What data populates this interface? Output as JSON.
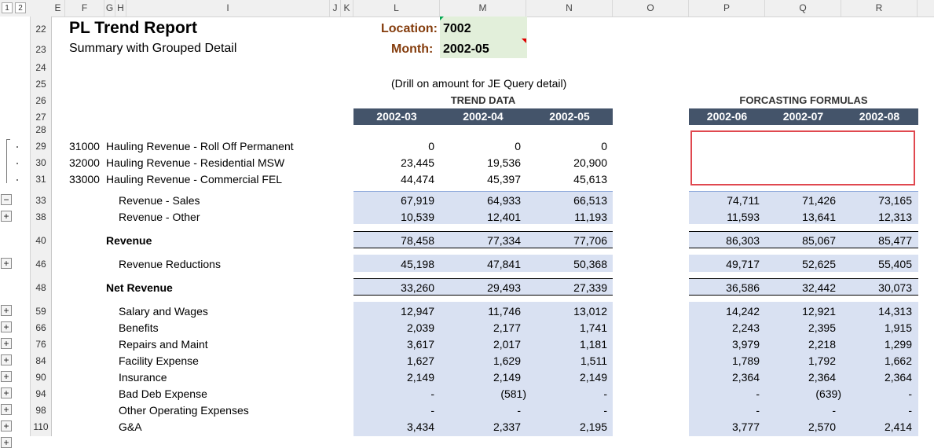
{
  "column_headers": [
    "E",
    "F",
    "G",
    "H",
    "I",
    "J",
    "K",
    "L",
    "M",
    "N",
    "O",
    "P",
    "Q",
    "R"
  ],
  "outline_levels": [
    "1",
    "2"
  ],
  "title": "PL Trend Report",
  "subtitle": "Summary with Grouped Detail",
  "location_label": "Location:",
  "location_value": "7002",
  "month_label": "Month:",
  "month_value": "2002-05",
  "drill_note": "(Drill on amount for JE Query detail)",
  "trend_title": "TREND DATA",
  "forecast_title": "FORCASTING FORMULAS",
  "trend_periods": [
    "2002-03",
    "2002-04",
    "2002-05"
  ],
  "forecast_periods": [
    "2002-06",
    "2002-07",
    "2002-08"
  ],
  "row_numbers": [
    "22",
    "23",
    "24",
    "25",
    "26",
    "27",
    "28",
    "29",
    "30",
    "31",
    "33",
    "38",
    "40",
    "46",
    "48",
    "59",
    "66",
    "76",
    "84",
    "90",
    "94",
    "98",
    "110"
  ],
  "detail_rows": [
    {
      "row": "29",
      "account": "31000",
      "desc": "Hauling Revenue - Roll Off Permanent",
      "trend": [
        "0",
        "0",
        "0"
      ]
    },
    {
      "row": "30",
      "account": "32000",
      "desc": "Hauling Revenue - Residential MSW",
      "trend": [
        "23,445",
        "19,536",
        "20,900"
      ]
    },
    {
      "row": "31",
      "account": "33000",
      "desc": "Hauling Revenue - Commercial FEL",
      "trend": [
        "44,474",
        "45,397",
        "45,613"
      ]
    }
  ],
  "summary_rows": [
    {
      "row": "33",
      "label": "Revenue - Sales",
      "bold": false,
      "trend": [
        "67,919",
        "64,933",
        "66,513"
      ],
      "forecast": [
        "74,711",
        "71,426",
        "73,165"
      ]
    },
    {
      "row": "38",
      "label": "Revenue - Other",
      "bold": false,
      "trend": [
        "10,539",
        "12,401",
        "11,193"
      ],
      "forecast": [
        "11,593",
        "13,641",
        "12,313"
      ]
    },
    {
      "row": "40",
      "label": "Revenue",
      "bold": true,
      "trend": [
        "78,458",
        "77,334",
        "77,706"
      ],
      "forecast": [
        "86,303",
        "85,067",
        "85,477"
      ]
    },
    {
      "row": "46",
      "label": "Revenue Reductions",
      "bold": false,
      "trend": [
        "45,198",
        "47,841",
        "50,368"
      ],
      "forecast": [
        "49,717",
        "52,625",
        "55,405"
      ]
    },
    {
      "row": "48",
      "label": "Net Revenue",
      "bold": true,
      "trend": [
        "33,260",
        "29,493",
        "27,339"
      ],
      "forecast": [
        "36,586",
        "32,442",
        "30,073"
      ]
    },
    {
      "row": "59",
      "label": "Salary and Wages",
      "bold": false,
      "trend": [
        "12,947",
        "11,746",
        "13,012"
      ],
      "forecast": [
        "14,242",
        "12,921",
        "14,313"
      ]
    },
    {
      "row": "66",
      "label": "Benefits",
      "bold": false,
      "trend": [
        "2,039",
        "2,177",
        "1,741"
      ],
      "forecast": [
        "2,243",
        "2,395",
        "1,915"
      ]
    },
    {
      "row": "76",
      "label": "Repairs and Maint",
      "bold": false,
      "trend": [
        "3,617",
        "2,017",
        "1,181"
      ],
      "forecast": [
        "3,979",
        "2,218",
        "1,299"
      ]
    },
    {
      "row": "84",
      "label": "Facility Expense",
      "bold": false,
      "trend": [
        "1,627",
        "1,629",
        "1,511"
      ],
      "forecast": [
        "1,789",
        "1,792",
        "1,662"
      ]
    },
    {
      "row": "90",
      "label": "Insurance",
      "bold": false,
      "trend": [
        "2,149",
        "2,149",
        "2,149"
      ],
      "forecast": [
        "2,364",
        "2,364",
        "2,364"
      ]
    },
    {
      "row": "94",
      "label": "Bad Deb Expense",
      "bold": false,
      "trend": [
        "-",
        "(581)",
        "-"
      ],
      "forecast": [
        "-",
        "(639)",
        "-"
      ]
    },
    {
      "row": "98",
      "label": "Other Operating Expenses",
      "bold": false,
      "trend": [
        "-",
        "-",
        "-"
      ],
      "forecast": [
        "-",
        "-",
        "-"
      ]
    },
    {
      "row": "110",
      "label": "G&A",
      "bold": false,
      "trend": [
        "3,434",
        "2,337",
        "2,195"
      ],
      "forecast": [
        "3,777",
        "2,570",
        "2,414"
      ]
    }
  ],
  "outline_buttons": [
    "−",
    "+",
    "+",
    "+",
    "+",
    "+",
    "+",
    "+",
    "+",
    "+",
    "+",
    "+"
  ],
  "colors": {
    "header_bar": "#44546a",
    "band": "#d9e1f2",
    "input_fill": "#e2efda",
    "label_brown": "#843c0c",
    "highlight_box": "#e0484f"
  }
}
